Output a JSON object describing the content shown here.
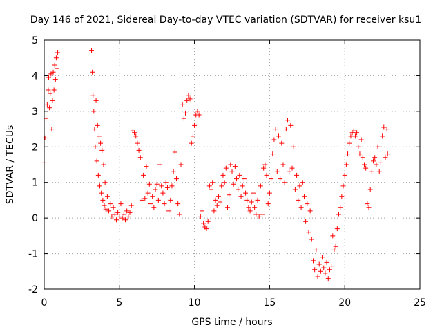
{
  "chart_data": {
    "type": "scatter",
    "title": "Day 146 of 2021, Sidereal Day-to-day VTEC variation (SDTVAR) for receiver ksu1",
    "xlabel": "GPS time / hours",
    "ylabel": "SDTVAR / TECUs",
    "xlim": [
      0,
      25
    ],
    "ylim": [
      -2,
      5
    ],
    "xticks": [
      "0",
      "5",
      "10",
      "15",
      "20",
      "25"
    ],
    "yticks": [
      "-2",
      "-1",
      "0",
      "1",
      "2",
      "3",
      "4",
      "5"
    ],
    "grid": true,
    "marker": "plus",
    "color": "#ff0000",
    "series": [
      {
        "values": [
          [
            0.0,
            1.55
          ],
          [
            0.05,
            2.25
          ],
          [
            0.12,
            2.8
          ],
          [
            0.2,
            3.2
          ],
          [
            0.27,
            3.6
          ],
          [
            0.3,
            3.95
          ],
          [
            0.35,
            3.1
          ],
          [
            0.4,
            3.5
          ],
          [
            0.45,
            4.05
          ],
          [
            0.5,
            2.5
          ],
          [
            0.55,
            3.3
          ],
          [
            0.6,
            4.1
          ],
          [
            0.65,
            3.6
          ],
          [
            0.7,
            4.3
          ],
          [
            0.75,
            3.9
          ],
          [
            0.8,
            4.5
          ],
          [
            0.85,
            4.2
          ],
          [
            0.9,
            4.65
          ],
          [
            3.15,
            4.7
          ],
          [
            3.2,
            4.1
          ],
          [
            3.25,
            3.45
          ],
          [
            3.3,
            3.0
          ],
          [
            3.35,
            2.5
          ],
          [
            3.4,
            2.0
          ],
          [
            3.45,
            3.3
          ],
          [
            3.5,
            1.6
          ],
          [
            3.55,
            2.6
          ],
          [
            3.6,
            1.2
          ],
          [
            3.65,
            2.3
          ],
          [
            3.7,
            0.9
          ],
          [
            3.75,
            2.1
          ],
          [
            3.8,
            0.7
          ],
          [
            3.85,
            1.9
          ],
          [
            3.9,
            0.5
          ],
          [
            3.95,
            1.5
          ],
          [
            4.0,
            0.35
          ],
          [
            4.05,
            1.0
          ],
          [
            4.1,
            0.25
          ],
          [
            4.2,
            0.6
          ],
          [
            4.3,
            0.2
          ],
          [
            4.4,
            0.4
          ],
          [
            4.5,
            0.05
          ],
          [
            4.6,
            0.3
          ],
          [
            4.7,
            0.1
          ],
          [
            4.8,
            -0.05
          ],
          [
            4.9,
            0.15
          ],
          [
            5.0,
            0.05
          ],
          [
            5.1,
            0.4
          ],
          [
            5.2,
            0.0
          ],
          [
            5.3,
            0.1
          ],
          [
            5.4,
            -0.05
          ],
          [
            5.5,
            0.2
          ],
          [
            5.6,
            0.05
          ],
          [
            5.7,
            0.15
          ],
          [
            5.8,
            0.35
          ],
          [
            5.9,
            2.45
          ],
          [
            6.0,
            2.4
          ],
          [
            6.1,
            2.3
          ],
          [
            6.2,
            2.1
          ],
          [
            6.3,
            1.9
          ],
          [
            6.4,
            1.7
          ],
          [
            6.5,
            0.5
          ],
          [
            6.6,
            1.2
          ],
          [
            6.7,
            0.55
          ],
          [
            6.8,
            1.45
          ],
          [
            6.9,
            0.7
          ],
          [
            7.0,
            0.95
          ],
          [
            7.1,
            0.4
          ],
          [
            7.2,
            0.6
          ],
          [
            7.3,
            0.3
          ],
          [
            7.4,
            0.8
          ],
          [
            7.5,
            0.95
          ],
          [
            7.6,
            0.5
          ],
          [
            7.7,
            1.5
          ],
          [
            7.8,
            0.9
          ],
          [
            7.9,
            0.7
          ],
          [
            8.0,
            0.4
          ],
          [
            8.1,
            1.0
          ],
          [
            8.2,
            0.85
          ],
          [
            8.3,
            0.2
          ],
          [
            8.4,
            0.5
          ],
          [
            8.5,
            0.9
          ],
          [
            8.6,
            1.3
          ],
          [
            8.7,
            1.85
          ],
          [
            8.8,
            1.1
          ],
          [
            8.9,
            0.4
          ],
          [
            9.0,
            0.1
          ],
          [
            9.1,
            1.5
          ],
          [
            9.2,
            3.2
          ],
          [
            9.3,
            2.8
          ],
          [
            9.4,
            2.95
          ],
          [
            9.5,
            3.3
          ],
          [
            9.6,
            3.45
          ],
          [
            9.7,
            3.35
          ],
          [
            9.8,
            2.1
          ],
          [
            9.9,
            2.3
          ],
          [
            10.0,
            2.6
          ],
          [
            10.1,
            2.9
          ],
          [
            10.2,
            3.0
          ],
          [
            10.3,
            2.9
          ],
          [
            10.4,
            0.05
          ],
          [
            10.5,
            0.2
          ],
          [
            10.6,
            -0.15
          ],
          [
            10.7,
            -0.25
          ],
          [
            10.8,
            -0.3
          ],
          [
            10.9,
            -0.1
          ],
          [
            11.0,
            0.9
          ],
          [
            11.1,
            0.8
          ],
          [
            11.2,
            1.0
          ],
          [
            11.3,
            0.2
          ],
          [
            11.4,
            0.5
          ],
          [
            11.5,
            0.35
          ],
          [
            11.6,
            0.6
          ],
          [
            11.7,
            0.45
          ],
          [
            11.8,
            0.9
          ],
          [
            11.9,
            1.2
          ],
          [
            12.0,
            1.0
          ],
          [
            12.1,
            1.4
          ],
          [
            12.2,
            0.3
          ],
          [
            12.3,
            0.65
          ],
          [
            12.4,
            1.5
          ],
          [
            12.5,
            1.3
          ],
          [
            12.6,
            0.95
          ],
          [
            12.7,
            1.45
          ],
          [
            12.8,
            1.1
          ],
          [
            12.9,
            0.8
          ],
          [
            13.0,
            1.2
          ],
          [
            13.1,
            0.6
          ],
          [
            13.2,
            0.9
          ],
          [
            13.3,
            1.1
          ],
          [
            13.4,
            0.7
          ],
          [
            13.5,
            0.5
          ],
          [
            13.6,
            0.3
          ],
          [
            13.7,
            0.2
          ],
          [
            13.8,
            0.45
          ],
          [
            13.9,
            0.7
          ],
          [
            14.0,
            0.3
          ],
          [
            14.1,
            0.1
          ],
          [
            14.2,
            0.5
          ],
          [
            14.3,
            0.05
          ],
          [
            14.4,
            0.9
          ],
          [
            14.5,
            0.1
          ],
          [
            14.6,
            1.4
          ],
          [
            14.7,
            1.5
          ],
          [
            14.8,
            1.2
          ],
          [
            14.9,
            0.4
          ],
          [
            15.0,
            0.7
          ],
          [
            15.1,
            1.1
          ],
          [
            15.2,
            1.8
          ],
          [
            15.3,
            2.2
          ],
          [
            15.4,
            2.5
          ],
          [
            15.5,
            1.3
          ],
          [
            15.6,
            2.3
          ],
          [
            15.7,
            1.1
          ],
          [
            15.8,
            2.1
          ],
          [
            15.9,
            1.5
          ],
          [
            16.0,
            1.0
          ],
          [
            16.1,
            2.5
          ],
          [
            16.2,
            2.75
          ],
          [
            16.3,
            1.3
          ],
          [
            16.4,
            2.6
          ],
          [
            16.5,
            1.4
          ],
          [
            16.6,
            2.0
          ],
          [
            16.7,
            0.8
          ],
          [
            16.8,
            1.2
          ],
          [
            16.9,
            0.5
          ],
          [
            17.0,
            0.9
          ],
          [
            17.1,
            0.3
          ],
          [
            17.2,
            1.0
          ],
          [
            17.3,
            0.6
          ],
          [
            17.4,
            -0.1
          ],
          [
            17.5,
            0.4
          ],
          [
            17.6,
            -0.4
          ],
          [
            17.7,
            0.2
          ],
          [
            17.8,
            -0.6
          ],
          [
            17.9,
            -1.2
          ],
          [
            18.0,
            -1.45
          ],
          [
            18.1,
            -0.9
          ],
          [
            18.2,
            -1.65
          ],
          [
            18.3,
            -1.3
          ],
          [
            18.4,
            -1.5
          ],
          [
            18.5,
            -1.1
          ],
          [
            18.6,
            -1.4
          ],
          [
            18.7,
            -1.55
          ],
          [
            18.8,
            -1.25
          ],
          [
            18.9,
            -1.7
          ],
          [
            19.0,
            -1.45
          ],
          [
            19.1,
            -1.35
          ],
          [
            19.2,
            -0.5
          ],
          [
            19.3,
            -0.9
          ],
          [
            19.4,
            -0.8
          ],
          [
            19.5,
            -0.3
          ],
          [
            19.6,
            0.1
          ],
          [
            19.7,
            0.3
          ],
          [
            19.8,
            0.6
          ],
          [
            19.9,
            0.9
          ],
          [
            20.0,
            1.2
          ],
          [
            20.1,
            1.5
          ],
          [
            20.2,
            1.8
          ],
          [
            20.3,
            2.1
          ],
          [
            20.4,
            2.3
          ],
          [
            20.5,
            2.4
          ],
          [
            20.6,
            2.45
          ],
          [
            20.7,
            2.3
          ],
          [
            20.8,
            2.4
          ],
          [
            20.9,
            2.0
          ],
          [
            21.0,
            1.8
          ],
          [
            21.1,
            2.2
          ],
          [
            21.2,
            1.7
          ],
          [
            21.3,
            1.5
          ],
          [
            21.4,
            1.4
          ],
          [
            21.5,
            0.4
          ],
          [
            21.6,
            0.3
          ],
          [
            21.7,
            0.8
          ],
          [
            21.8,
            1.3
          ],
          [
            21.9,
            1.6
          ],
          [
            22.0,
            1.7
          ],
          [
            22.1,
            1.5
          ],
          [
            22.2,
            2.0
          ],
          [
            22.3,
            1.3
          ],
          [
            22.4,
            1.55
          ],
          [
            22.5,
            2.3
          ],
          [
            22.6,
            2.55
          ],
          [
            22.7,
            1.7
          ],
          [
            22.8,
            2.5
          ],
          [
            22.85,
            1.8
          ]
        ]
      }
    ]
  }
}
